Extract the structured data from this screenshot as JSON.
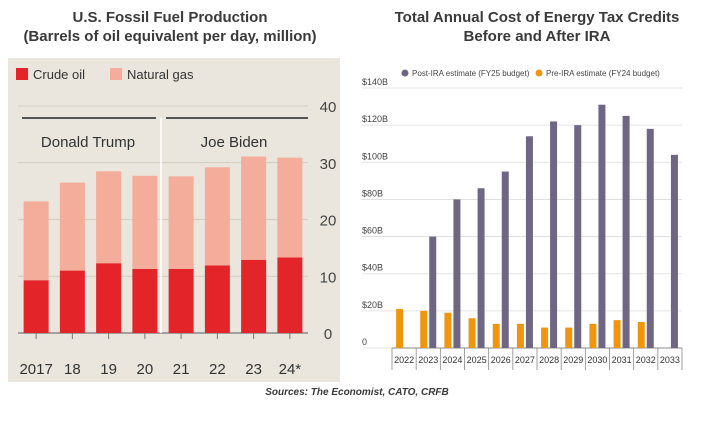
{
  "left_title": [
    "U.S. Fossil Fuel Production",
    "(Barrels of oil equivalent per day, million)"
  ],
  "right_title": [
    "Total Annual Cost of Energy Tax Credits",
    "Before and After IRA"
  ],
  "source": "Sources: The Economist, CATO, CRFB",
  "colors": {
    "crude": "#e3252a",
    "gas": "#f4ad9a",
    "panel": "#eae6dd",
    "post": "#6f6683",
    "pre": "#f0960e"
  },
  "chart_data": [
    {
      "type": "bar",
      "stacked": true,
      "categories": [
        "2017",
        "18",
        "19",
        "20",
        "21",
        "22",
        "23",
        "24*"
      ],
      "series": [
        {
          "name": "Crude oil",
          "values": [
            9.3,
            11.0,
            12.3,
            11.3,
            11.3,
            11.9,
            12.9,
            13.3
          ]
        },
        {
          "name": "Natural gas",
          "values": [
            13.9,
            15.5,
            16.2,
            16.4,
            16.3,
            17.3,
            18.2,
            17.6
          ]
        }
      ],
      "yticks": [
        "0",
        "10",
        "20",
        "30",
        "40"
      ],
      "ylim": [
        0,
        40
      ],
      "period_labels": [
        "Donald Trump",
        "Joe Biden"
      ],
      "legend": "top-left",
      "grid": true
    },
    {
      "type": "bar",
      "categories": [
        "2022",
        "2023",
        "2024",
        "2025",
        "2026",
        "2027",
        "2028",
        "2029",
        "2030",
        "2031",
        "2032",
        "2033"
      ],
      "series": [
        {
          "name": "Post-IRA estimate (FY25 budget)",
          "values": [
            null,
            60,
            80,
            86,
            95,
            114,
            122,
            120,
            131,
            125,
            118,
            104
          ]
        },
        {
          "name": "Pre-IRA estimate (FY24 budget)",
          "values": [
            21,
            20,
            19,
            16,
            13,
            13,
            11,
            11,
            13,
            15,
            14,
            null
          ]
        }
      ],
      "yticks": [
        "0",
        "$20B",
        "$40B",
        "$60B",
        "$80B",
        "$100B",
        "$120B",
        "$140B"
      ],
      "ylim": [
        0,
        140
      ],
      "legend": "top",
      "grid": true
    }
  ]
}
